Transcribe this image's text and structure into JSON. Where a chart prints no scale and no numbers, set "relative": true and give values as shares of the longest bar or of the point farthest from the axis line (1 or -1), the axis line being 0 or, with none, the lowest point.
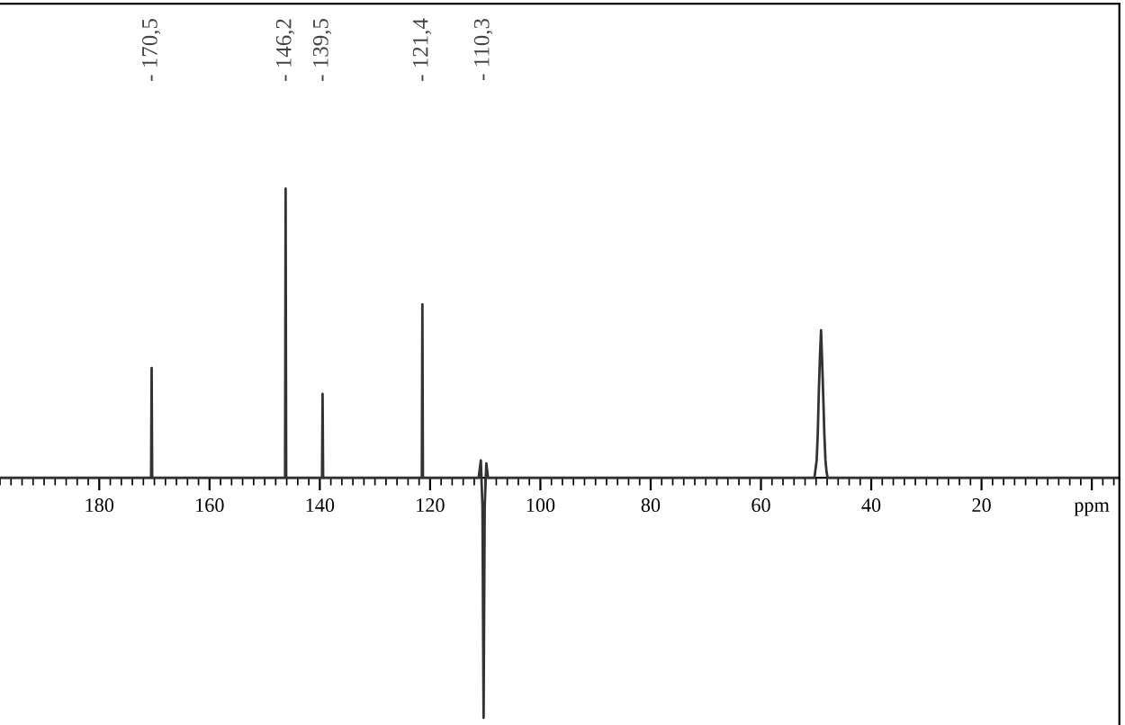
{
  "chart_data": {
    "type": "line",
    "relative": true,
    "series": [
      {
        "color": "#333333",
        "x": [
          198,
          171.0,
          170.6,
          170.5,
          170.4,
          146.8,
          146.3,
          146.2,
          146.1,
          139.9,
          139.6,
          139.5,
          139.4,
          121.8,
          121.5,
          121.4,
          121.3,
          111.2,
          110.8,
          110.5,
          110.3,
          110.1,
          109.8,
          109.5,
          50.3,
          49.9,
          49.7,
          49.5,
          49.3,
          49.1,
          48.9,
          48.7,
          48.5,
          48.3,
          48.1,
          47.9,
          -5
        ],
        "values": [
          0,
          0,
          0,
          0.38,
          0,
          0,
          0,
          1,
          0,
          0,
          0,
          0.29,
          0,
          0,
          0,
          0.6,
          0,
          0,
          0.06,
          -0.1,
          -0.83,
          -0.1,
          0.05,
          0,
          0,
          0.06,
          0.15,
          0.3,
          0.42,
          0.51,
          0.4,
          0.28,
          0.15,
          0.06,
          0.02,
          0,
          0
        ]
      }
    ],
    "xlim": [
      198,
      -5
    ],
    "xticks": [
      180,
      160,
      140,
      120,
      100,
      80,
      60,
      40,
      20,
      {
        "value": 0,
        "label": "ppm"
      }
    ],
    "marker": "none",
    "line_style": "solid",
    "grid": false,
    "legend": false,
    "annotations": [
      "- 170,5",
      "- 146,2",
      "- 139,5",
      "- 121,4",
      "- 110,3"
    ]
  }
}
